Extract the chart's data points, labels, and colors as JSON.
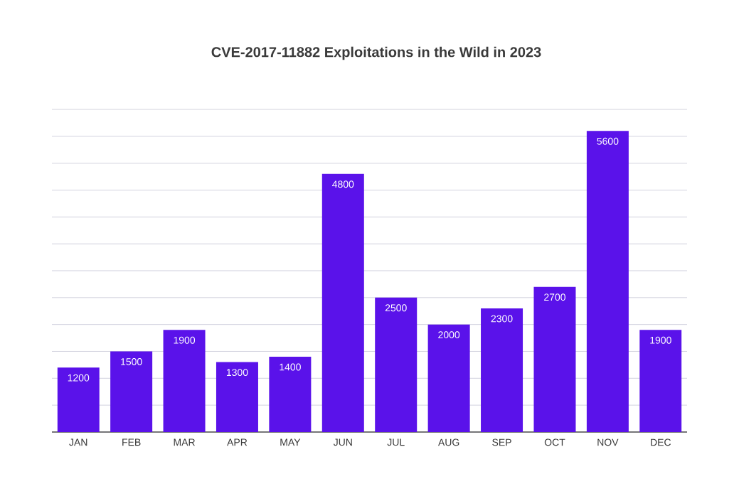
{
  "chart_data": {
    "type": "bar",
    "title": "CVE-2017-11882 Exploitations in the Wild in 2023",
    "categories": [
      "JAN",
      "FEB",
      "MAR",
      "APR",
      "MAY",
      "JUN",
      "JUL",
      "AUG",
      "SEP",
      "OCT",
      "NOV",
      "DEC"
    ],
    "values": [
      1200,
      1500,
      1900,
      1300,
      1400,
      4800,
      2500,
      2000,
      2300,
      2700,
      5600,
      1900
    ],
    "color": "#5a12ea",
    "tick_labels": "x",
    "grid": "y",
    "data_labels": true
  }
}
